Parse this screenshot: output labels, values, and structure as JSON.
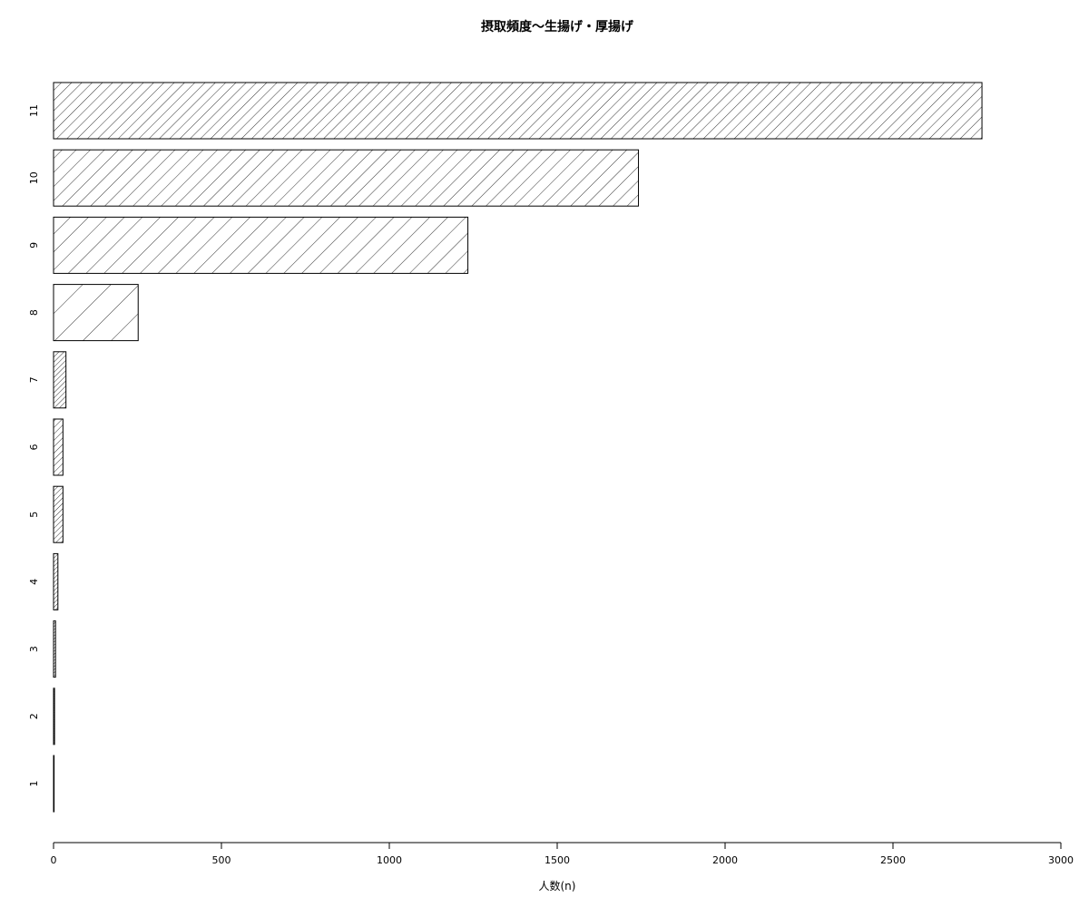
{
  "chart_data": {
    "type": "bar",
    "orientation": "horizontal",
    "title": "摂取頻度～生揚げ・厚揚げ",
    "xlabel": "人数(n)",
    "ylabel": "",
    "categories": [
      "1",
      "2",
      "3",
      "4",
      "5",
      "6",
      "7",
      "8",
      "9",
      "10",
      "11"
    ],
    "values": [
      1,
      3,
      6,
      13,
      28,
      28,
      37,
      252,
      1234,
      1742,
      2765
    ],
    "xlim": [
      0,
      3000
    ],
    "x_ticks": [
      "0",
      "500",
      "1000",
      "1500",
      "2000",
      "2500",
      "3000"
    ],
    "grid": false,
    "fill": "diagonal hatch, line density increasing with category",
    "colors": {
      "stroke": "#000000",
      "background": "#ffffff"
    }
  }
}
